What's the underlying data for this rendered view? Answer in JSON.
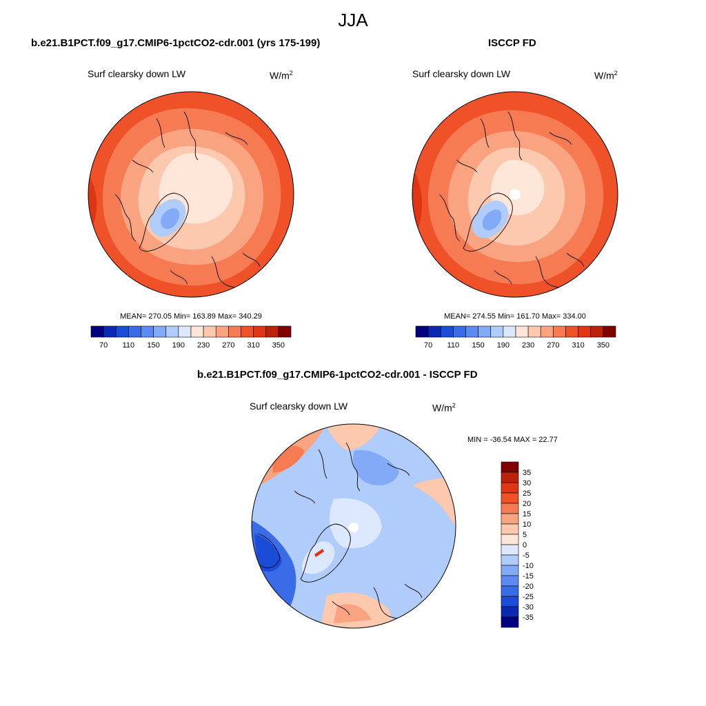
{
  "figure": {
    "season": "JJA",
    "units_base": "W/m",
    "units_exp": "2"
  },
  "panels": {
    "model": {
      "title": "b.e21.B1PCT.f09_g17.CMIP6-1pctCO2-cdr.001 (yrs 175-199)",
      "left_label": "Surf clearsky down LW",
      "stats": "MEAN= 270.05  Min= 163.89  Max= 340.29"
    },
    "obs": {
      "title": "ISCCP FD",
      "left_label": "Surf clearsky down LW",
      "stats": "MEAN= 274.55  Min= 161.70  Max= 334.00"
    },
    "diff": {
      "title": "b.e21.B1PCT.f09_g17.CMIP6-1pctCO2-cdr.001 - ISCCP FD",
      "left_label": "Surf clearsky down LW",
      "stats": "MIN = -36.54 MAX =  22.77"
    }
  },
  "chart_data": [
    {
      "type": "heatmap",
      "projection": "north-polar-stereographic",
      "title": "b.e21.B1PCT.f09_g17.CMIP6-1pctCO2-cdr.001 (yrs 175-199)",
      "variable": "Surf clearsky down LW",
      "units": "W/m2",
      "mean": 270.05,
      "min": 163.89,
      "max": 340.29,
      "colorbar_orientation": "horizontal",
      "levels": [
        70,
        90,
        110,
        130,
        150,
        170,
        190,
        210,
        230,
        250,
        270,
        290,
        310,
        330,
        350
      ],
      "tick_labels": [
        "70",
        "110",
        "150",
        "190",
        "230",
        "270",
        "310",
        "350"
      ],
      "colors": [
        "#000080",
        "#0a2ab4",
        "#1b4cd8",
        "#3a6ce8",
        "#5c8af0",
        "#83aaf6",
        "#b0ccfa",
        "#dce8fd",
        "#fde5d8",
        "#fcc8ae",
        "#faa380",
        "#f67b52",
        "#ef5129",
        "#e03512",
        "#bb2208",
        "#800000"
      ]
    },
    {
      "type": "heatmap",
      "projection": "north-polar-stereographic",
      "title": "ISCCP FD",
      "variable": "Surf clearsky down LW",
      "units": "W/m2",
      "mean": 274.55,
      "min": 161.7,
      "max": 334.0,
      "colorbar_orientation": "horizontal",
      "levels": [
        70,
        90,
        110,
        130,
        150,
        170,
        190,
        210,
        230,
        250,
        270,
        290,
        310,
        330,
        350
      ],
      "tick_labels": [
        "70",
        "110",
        "150",
        "190",
        "230",
        "270",
        "310",
        "350"
      ],
      "colors": [
        "#000080",
        "#0a2ab4",
        "#1b4cd8",
        "#3a6ce8",
        "#5c8af0",
        "#83aaf6",
        "#b0ccfa",
        "#dce8fd",
        "#fde5d8",
        "#fcc8ae",
        "#faa380",
        "#f67b52",
        "#ef5129",
        "#e03512",
        "#bb2208",
        "#800000"
      ]
    },
    {
      "type": "heatmap",
      "projection": "north-polar-stereographic",
      "title": "b.e21.B1PCT.f09_g17.CMIP6-1pctCO2-cdr.001 - ISCCP FD",
      "variable": "Surf clearsky down LW",
      "units": "W/m2",
      "min": -36.54,
      "max": 22.77,
      "colorbar_orientation": "vertical",
      "levels": [
        35,
        30,
        25,
        20,
        15,
        10,
        5,
        0,
        -5,
        -10,
        -15,
        -20,
        -25,
        -30,
        -35
      ],
      "tick_labels": [
        "35",
        "30",
        "25",
        "20",
        "15",
        "10",
        "5",
        "0",
        "-5",
        "-10",
        "-15",
        "-20",
        "-25",
        "-30",
        "-35"
      ],
      "colors": [
        "#800000",
        "#bb2208",
        "#e03512",
        "#ef5129",
        "#f67b52",
        "#faa380",
        "#fcc8ae",
        "#fde5d8",
        "#dce8fd",
        "#b0ccfa",
        "#83aaf6",
        "#5c8af0",
        "#3a6ce8",
        "#1b4cd8",
        "#0a2ab4",
        "#000080"
      ]
    }
  ]
}
